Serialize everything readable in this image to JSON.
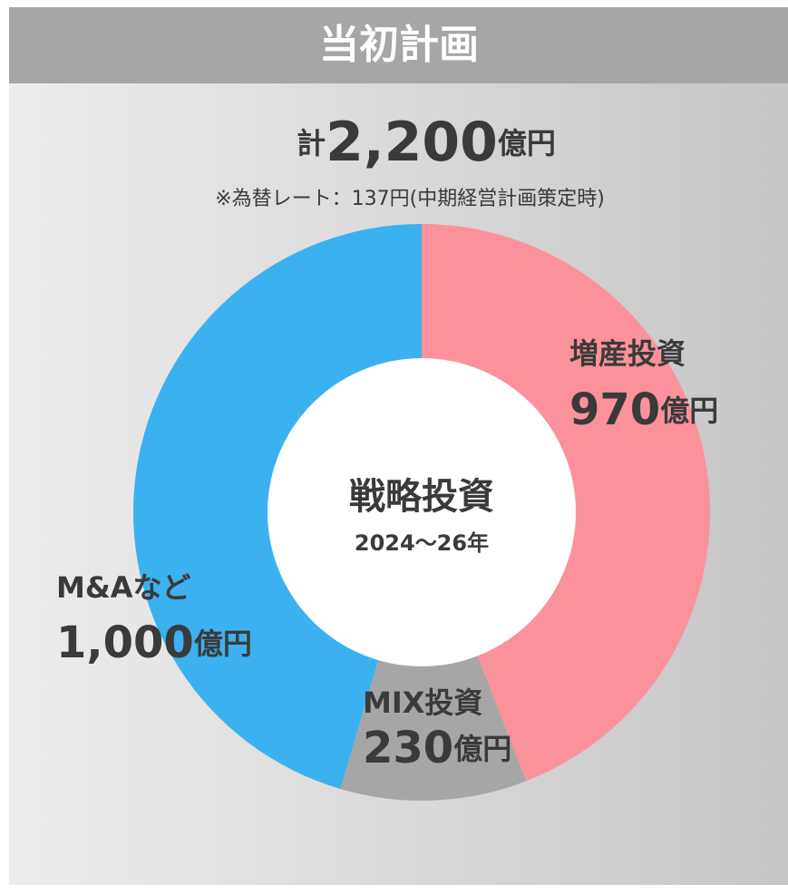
{
  "chart_data": {
    "type": "pie",
    "title": "当初計画",
    "total_prefix": "計",
    "total": {
      "value": 2200,
      "label": "2,200"
    },
    "unit": "億円",
    "note": "※為替レート：137円(中期経営計画策定時)",
    "center_title": "戦略投資",
    "center_subtitle": "2024～26年",
    "categories": [
      "増産投資",
      "MIX投資",
      "M&Aなど"
    ],
    "values": [
      970,
      230,
      1000
    ],
    "value_labels": [
      "970",
      "230",
      "1,000"
    ],
    "colors": [
      "#fb929b",
      "#a6a6a6",
      "#3cb1f0"
    ]
  }
}
